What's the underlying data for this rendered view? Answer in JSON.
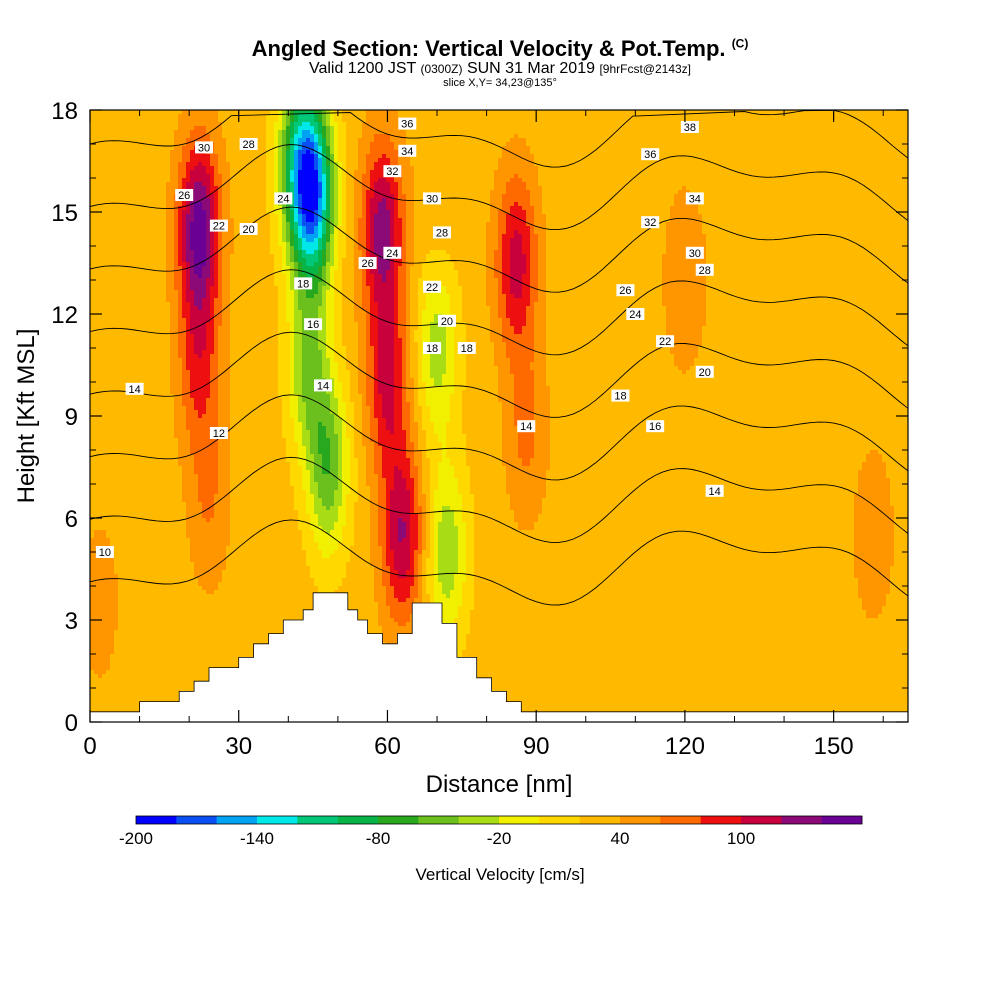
{
  "header": {
    "title": "Angled Section: Vertical Velocity & Pot.Temp.",
    "title_mark": "(C)",
    "subtitle_main": "Valid 1200 JST",
    "subtitle_utc": "(0300Z)",
    "subtitle_date": "SUN 31 Mar 2019",
    "subtitle_fcst": "[9hrFcst@2143z]",
    "slice": "slice X,Y= 34,23@135°"
  },
  "chart_data": {
    "type": "heatmap",
    "xlabel": "Distance [nm]",
    "ylabel": "Height [Kft MSL]",
    "xlim": [
      0,
      165
    ],
    "ylim": [
      0,
      18
    ],
    "x_ticks": [
      0,
      30,
      60,
      90,
      120,
      150
    ],
    "y_ticks": [
      0,
      3,
      6,
      9,
      12,
      15,
      18
    ],
    "colorbar": {
      "label": "Vertical Velocity [cm/s]",
      "tick_labels": [
        "-200",
        "-140",
        "-80",
        "-20",
        "40",
        "100"
      ],
      "tick_values": [
        -200,
        -140,
        -80,
        -20,
        40,
        100
      ],
      "levels": [
        -200,
        -180,
        -160,
        -140,
        -120,
        -100,
        -80,
        -60,
        -40,
        -20,
        0,
        20,
        40,
        60,
        80,
        100,
        120
      ],
      "colors": [
        "#0000ff",
        "#0a4ff4",
        "#00a2f4",
        "#00e8e8",
        "#00c878",
        "#06b448",
        "#28a81e",
        "#6cc01e",
        "#a8dc14",
        "#f0f000",
        "#ffd800",
        "#ffba00",
        "#ff9600",
        "#ff6a00",
        "#ee1010",
        "#c8003c",
        "#8c0a78",
        "#6a0094"
      ]
    },
    "background_value": 10,
    "velocity_features": [
      {
        "x": 22,
        "y": 14.5,
        "value": 130
      },
      {
        "x": 22,
        "y": 10.5,
        "value": 65
      },
      {
        "x": 24,
        "y": 6.5,
        "value": 40
      },
      {
        "x": 42,
        "y": 16.5,
        "value": -90
      },
      {
        "x": 45,
        "y": 15.5,
        "value": -170
      },
      {
        "x": 44,
        "y": 10.5,
        "value": -60
      },
      {
        "x": 48,
        "y": 7.5,
        "value": -75
      },
      {
        "x": 59,
        "y": 14.5,
        "value": 110
      },
      {
        "x": 60,
        "y": 10,
        "value": 85
      },
      {
        "x": 63,
        "y": 5.5,
        "value": 100
      },
      {
        "x": 70,
        "y": 11,
        "value": -50
      },
      {
        "x": 72,
        "y": 5,
        "value": -55
      },
      {
        "x": 86,
        "y": 13.5,
        "value": 90
      },
      {
        "x": 88,
        "y": 8.5,
        "value": 45
      },
      {
        "x": 120,
        "y": 13,
        "value": 40
      },
      {
        "x": 2,
        "y": 3.5,
        "value": 30
      },
      {
        "x": 158,
        "y": 5.5,
        "value": 35
      },
      {
        "x": 100,
        "y": 1.5,
        "value": 5
      },
      {
        "x": 146,
        "y": 2,
        "value": 5
      },
      {
        "x": 70,
        "y": 15.5,
        "value": 20
      }
    ],
    "terrain": [
      [
        0,
        0.3
      ],
      [
        10,
        0.3
      ],
      [
        10,
        0.6
      ],
      [
        18,
        0.6
      ],
      [
        18,
        0.9
      ],
      [
        21,
        0.9
      ],
      [
        21,
        1.2
      ],
      [
        24,
        1.2
      ],
      [
        24,
        1.6
      ],
      [
        30,
        1.6
      ],
      [
        30,
        1.9
      ],
      [
        33,
        1.9
      ],
      [
        33,
        2.3
      ],
      [
        36,
        2.3
      ],
      [
        36,
        2.6
      ],
      [
        39,
        2.6
      ],
      [
        39,
        3.0
      ],
      [
        43,
        3.0
      ],
      [
        43,
        3.3
      ],
      [
        45,
        3.3
      ],
      [
        45,
        3.8
      ],
      [
        52,
        3.8
      ],
      [
        52,
        3.3
      ],
      [
        54,
        3.3
      ],
      [
        54,
        3.0
      ],
      [
        56,
        3.0
      ],
      [
        56,
        2.6
      ],
      [
        59,
        2.6
      ],
      [
        59,
        2.3
      ],
      [
        62,
        2.3
      ],
      [
        62,
        2.6
      ],
      [
        65,
        2.6
      ],
      [
        65,
        3.5
      ],
      [
        71,
        3.5
      ],
      [
        71,
        2.9
      ],
      [
        74,
        2.9
      ],
      [
        74,
        1.9
      ],
      [
        78,
        1.9
      ],
      [
        78,
        1.3
      ],
      [
        81,
        1.3
      ],
      [
        81,
        0.9
      ],
      [
        84,
        0.9
      ],
      [
        84,
        0.6
      ],
      [
        87,
        0.6
      ],
      [
        87,
        0.3
      ],
      [
        165,
        0.3
      ]
    ],
    "theta_isolines": {
      "levels": [
        10,
        12,
        14,
        16,
        18,
        20,
        22,
        24,
        26,
        28,
        30,
        32,
        34,
        36,
        38
      ],
      "label_values": [
        "10",
        "12",
        "14",
        "16",
        "18",
        "20",
        "22",
        "24",
        "26",
        "28",
        "30",
        "32",
        "34",
        "36",
        "38"
      ]
    },
    "contour_labels": [
      {
        "x": 23,
        "y": 16.9,
        "text": "30"
      },
      {
        "x": 32,
        "y": 17.0,
        "text": "28"
      },
      {
        "x": 19,
        "y": 15.5,
        "text": "26"
      },
      {
        "x": 39,
        "y": 15.4,
        "text": "24"
      },
      {
        "x": 26,
        "y": 14.6,
        "text": "22"
      },
      {
        "x": 32,
        "y": 14.5,
        "text": "20"
      },
      {
        "x": 43,
        "y": 12.9,
        "text": "18"
      },
      {
        "x": 45,
        "y": 11.7,
        "text": "16"
      },
      {
        "x": 47,
        "y": 9.9,
        "text": "14"
      },
      {
        "x": 9,
        "y": 9.8,
        "text": "14"
      },
      {
        "x": 26,
        "y": 8.5,
        "text": "12"
      },
      {
        "x": 3,
        "y": 5.0,
        "text": "10"
      },
      {
        "x": 64,
        "y": 17.6,
        "text": "36"
      },
      {
        "x": 64,
        "y": 16.8,
        "text": "34"
      },
      {
        "x": 61,
        "y": 16.2,
        "text": "32"
      },
      {
        "x": 69,
        "y": 15.4,
        "text": "30"
      },
      {
        "x": 71,
        "y": 14.4,
        "text": "28"
      },
      {
        "x": 56,
        "y": 13.5,
        "text": "26"
      },
      {
        "x": 61,
        "y": 13.8,
        "text": "24"
      },
      {
        "x": 69,
        "y": 12.8,
        "text": "22"
      },
      {
        "x": 72,
        "y": 11.8,
        "text": "20"
      },
      {
        "x": 69,
        "y": 11.0,
        "text": "18"
      },
      {
        "x": 76,
        "y": 11.0,
        "text": "18"
      },
      {
        "x": 88,
        "y": 8.7,
        "text": "14"
      },
      {
        "x": 121,
        "y": 17.5,
        "text": "38"
      },
      {
        "x": 113,
        "y": 16.7,
        "text": "36"
      },
      {
        "x": 122,
        "y": 15.4,
        "text": "34"
      },
      {
        "x": 113,
        "y": 14.7,
        "text": "32"
      },
      {
        "x": 122,
        "y": 13.8,
        "text": "30"
      },
      {
        "x": 124,
        "y": 13.3,
        "text": "28"
      },
      {
        "x": 108,
        "y": 12.7,
        "text": "26"
      },
      {
        "x": 110,
        "y": 12.0,
        "text": "24"
      },
      {
        "x": 116,
        "y": 11.2,
        "text": "22"
      },
      {
        "x": 124,
        "y": 10.3,
        "text": "20"
      },
      {
        "x": 107,
        "y": 9.6,
        "text": "18"
      },
      {
        "x": 114,
        "y": 8.7,
        "text": "16"
      },
      {
        "x": 126,
        "y": 6.8,
        "text": "14"
      }
    ]
  }
}
